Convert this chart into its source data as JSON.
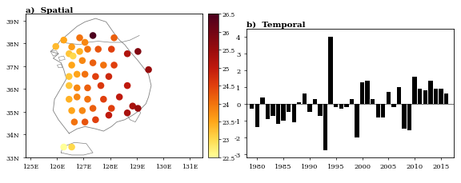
{
  "title_left": "a)  Spatial",
  "title_right": "b)  Temporal",
  "map_xlim": [
    124.8,
    131.5
  ],
  "map_ylim": [
    33.0,
    39.3
  ],
  "xticks": [
    125,
    126,
    127,
    128,
    129,
    130,
    131
  ],
  "yticks": [
    33,
    34,
    35,
    36,
    37,
    38,
    39
  ],
  "xtick_labels": [
    "125E",
    "126E",
    "127E",
    "128E",
    "129E",
    "130E",
    "131E"
  ],
  "ytick_labels": [
    "33N",
    "34N",
    "35N",
    "36N",
    "37N",
    "38N",
    "39N"
  ],
  "cbar_min": 22.5,
  "cbar_max": 26.5,
  "cbar_ticks": [
    22.5,
    23,
    23.5,
    24,
    24.5,
    25,
    25.5,
    26,
    26.5
  ],
  "cbar_labels": [
    "22.5",
    "23",
    "23.5",
    "24",
    "24.5",
    "25",
    "25.5",
    "26",
    "26.5"
  ],
  "stations": [
    {
      "lon": 125.95,
      "lat": 37.87,
      "val": 23.3
    },
    {
      "lon": 126.25,
      "lat": 38.15,
      "val": 23.5
    },
    {
      "lon": 126.55,
      "lat": 37.85,
      "val": 23.6
    },
    {
      "lon": 126.85,
      "lat": 38.25,
      "val": 24.0
    },
    {
      "lon": 127.05,
      "lat": 38.05,
      "val": 23.8
    },
    {
      "lon": 127.35,
      "lat": 38.35,
      "val": 26.5
    },
    {
      "lon": 128.15,
      "lat": 38.25,
      "val": 24.2
    },
    {
      "lon": 129.05,
      "lat": 37.65,
      "val": 25.8
    },
    {
      "lon": 129.45,
      "lat": 36.85,
      "val": 25.5
    },
    {
      "lon": 126.45,
      "lat": 37.55,
      "val": 23.2
    },
    {
      "lon": 126.6,
      "lat": 37.45,
      "val": 23.0
    },
    {
      "lon": 126.85,
      "lat": 37.65,
      "val": 23.4
    },
    {
      "lon": 127.15,
      "lat": 37.75,
      "val": 24.0
    },
    {
      "lon": 127.55,
      "lat": 37.75,
      "val": 24.3
    },
    {
      "lon": 128.05,
      "lat": 37.75,
      "val": 24.5
    },
    {
      "lon": 128.65,
      "lat": 37.55,
      "val": 25.2
    },
    {
      "lon": 126.55,
      "lat": 37.05,
      "val": 23.5
    },
    {
      "lon": 126.95,
      "lat": 37.25,
      "val": 23.8
    },
    {
      "lon": 127.35,
      "lat": 37.15,
      "val": 24.2
    },
    {
      "lon": 127.75,
      "lat": 37.05,
      "val": 24.0
    },
    {
      "lon": 128.15,
      "lat": 37.05,
      "val": 24.5
    },
    {
      "lon": 126.45,
      "lat": 36.55,
      "val": 23.2
    },
    {
      "lon": 126.75,
      "lat": 36.65,
      "val": 23.5
    },
    {
      "lon": 127.05,
      "lat": 36.65,
      "val": 24.0
    },
    {
      "lon": 127.45,
      "lat": 36.55,
      "val": 24.5
    },
    {
      "lon": 127.95,
      "lat": 36.55,
      "val": 24.8
    },
    {
      "lon": 128.65,
      "lat": 36.15,
      "val": 25.0
    },
    {
      "lon": 126.45,
      "lat": 36.15,
      "val": 23.2
    },
    {
      "lon": 126.75,
      "lat": 36.05,
      "val": 23.8
    },
    {
      "lon": 127.15,
      "lat": 36.05,
      "val": 24.2
    },
    {
      "lon": 127.65,
      "lat": 36.15,
      "val": 24.6
    },
    {
      "lon": 126.45,
      "lat": 35.55,
      "val": 23.4
    },
    {
      "lon": 126.75,
      "lat": 35.65,
      "val": 23.8
    },
    {
      "lon": 127.15,
      "lat": 35.55,
      "val": 24.0
    },
    {
      "lon": 127.75,
      "lat": 35.55,
      "val": 24.5
    },
    {
      "lon": 128.35,
      "lat": 35.65,
      "val": 25.0
    },
    {
      "lon": 128.85,
      "lat": 35.25,
      "val": 25.3
    },
    {
      "lon": 126.55,
      "lat": 35.05,
      "val": 23.5
    },
    {
      "lon": 126.95,
      "lat": 35.05,
      "val": 23.8
    },
    {
      "lon": 127.35,
      "lat": 35.15,
      "val": 24.2
    },
    {
      "lon": 128.05,
      "lat": 35.15,
      "val": 24.5
    },
    {
      "lon": 126.65,
      "lat": 34.55,
      "val": 24.0
    },
    {
      "lon": 127.05,
      "lat": 34.55,
      "val": 24.3
    },
    {
      "lon": 127.45,
      "lat": 34.65,
      "val": 24.5
    },
    {
      "lon": 127.95,
      "lat": 34.85,
      "val": 25.0
    },
    {
      "lon": 128.65,
      "lat": 34.95,
      "val": 25.3
    },
    {
      "lon": 129.05,
      "lat": 35.15,
      "val": 25.5
    },
    {
      "lon": 126.25,
      "lat": 33.45,
      "val": 22.5
    },
    {
      "lon": 126.55,
      "lat": 33.45,
      "val": 23.0
    }
  ],
  "korea_coast": [
    [
      126.45,
      34.05
    ],
    [
      126.25,
      34.35
    ],
    [
      126.05,
      34.65
    ],
    [
      125.85,
      35.05
    ],
    [
      125.9,
      35.55
    ],
    [
      126.15,
      36.05
    ],
    [
      126.35,
      36.45
    ],
    [
      126.25,
      36.85
    ],
    [
      126.15,
      37.15
    ],
    [
      125.85,
      37.35
    ],
    [
      126.05,
      37.55
    ],
    [
      125.75,
      37.65
    ],
    [
      125.95,
      37.85
    ],
    [
      126.1,
      38.1
    ],
    [
      126.35,
      38.35
    ],
    [
      126.55,
      38.55
    ],
    [
      126.75,
      38.75
    ],
    [
      127.05,
      38.95
    ],
    [
      127.45,
      39.1
    ],
    [
      127.85,
      38.95
    ],
    [
      128.15,
      38.45
    ],
    [
      128.35,
      38.15
    ],
    [
      128.55,
      37.95
    ],
    [
      128.75,
      37.65
    ],
    [
      129.05,
      37.25
    ],
    [
      129.25,
      36.95
    ],
    [
      129.45,
      36.65
    ],
    [
      129.55,
      36.15
    ],
    [
      129.45,
      35.65
    ],
    [
      129.35,
      35.35
    ],
    [
      129.1,
      35.05
    ],
    [
      128.85,
      34.85
    ],
    [
      128.55,
      34.65
    ],
    [
      128.25,
      34.55
    ],
    [
      128.05,
      34.35
    ],
    [
      127.75,
      34.15
    ],
    [
      127.45,
      34.25
    ],
    [
      127.05,
      34.35
    ],
    [
      126.75,
      34.25
    ],
    [
      126.45,
      34.05
    ]
  ],
  "jeju_coast": [
    [
      126.15,
      33.2
    ],
    [
      126.55,
      33.1
    ],
    [
      127.0,
      33.1
    ],
    [
      127.35,
      33.2
    ],
    [
      127.1,
      33.6
    ],
    [
      126.65,
      33.65
    ],
    [
      126.2,
      33.45
    ],
    [
      126.15,
      33.2
    ]
  ],
  "n_korea_border": [
    [
      126.15,
      38.05
    ],
    [
      126.5,
      38.0
    ],
    [
      126.85,
      37.95
    ],
    [
      127.15,
      38.05
    ],
    [
      127.55,
      38.1
    ],
    [
      128.0,
      38.05
    ],
    [
      128.4,
      38.05
    ],
    [
      128.75,
      38.15
    ],
    [
      129.1,
      38.35
    ]
  ],
  "west_islands": [
    [
      [
        125.85,
        37.45
      ],
      [
        126.05,
        37.55
      ],
      [
        125.95,
        37.7
      ],
      [
        125.75,
        37.65
      ],
      [
        125.85,
        37.45
      ]
    ],
    [
      [
        126.1,
        37.25
      ],
      [
        126.3,
        37.3
      ],
      [
        126.25,
        37.45
      ],
      [
        126.05,
        37.4
      ],
      [
        126.1,
        37.25
      ]
    ],
    [
      [
        126.05,
        36.95
      ],
      [
        126.2,
        36.95
      ],
      [
        126.15,
        37.1
      ],
      [
        126.0,
        37.05
      ],
      [
        126.05,
        36.95
      ]
    ]
  ],
  "south_coast_extra": [
    [
      128.65,
      34.85
    ],
    [
      128.75,
      34.65
    ],
    [
      128.95,
      34.55
    ],
    [
      129.05,
      34.75
    ],
    [
      129.15,
      34.95
    ],
    [
      129.05,
      35.15
    ]
  ],
  "bar_years": [
    1979,
    1980,
    1981,
    1982,
    1983,
    1984,
    1985,
    1986,
    1987,
    1988,
    1989,
    1990,
    1991,
    1992,
    1993,
    1994,
    1995,
    1996,
    1997,
    1998,
    1999,
    2000,
    2001,
    2002,
    2003,
    2004,
    2005,
    2006,
    2007,
    2008,
    2009,
    2010,
    2011,
    2012,
    2013,
    2014,
    2015,
    2016
  ],
  "bar_values": [
    -0.3,
    -1.4,
    0.4,
    -0.9,
    -0.7,
    -1.2,
    -1.0,
    -0.5,
    -1.1,
    0.1,
    0.6,
    -0.5,
    0.3,
    -0.7,
    -2.8,
    4.0,
    -0.2,
    -0.3,
    -0.2,
    0.3,
    -2.0,
    1.3,
    1.4,
    0.3,
    -0.8,
    -0.8,
    0.7,
    -0.2,
    1.0,
    -1.5,
    -1.6,
    1.6,
    0.9,
    0.8,
    1.4,
    0.9,
    0.9,
    0.6
  ],
  "bar_ylim": [
    -3.2,
    4.5
  ],
  "bar_yticks": [
    -3,
    -2,
    -1,
    0,
    1,
    2,
    3,
    4
  ],
  "bar_xticks": [
    1980,
    1985,
    1990,
    1995,
    2000,
    2005,
    2010,
    2015
  ],
  "dot_size": 38,
  "colormap": "YlOrRd",
  "background": "white"
}
